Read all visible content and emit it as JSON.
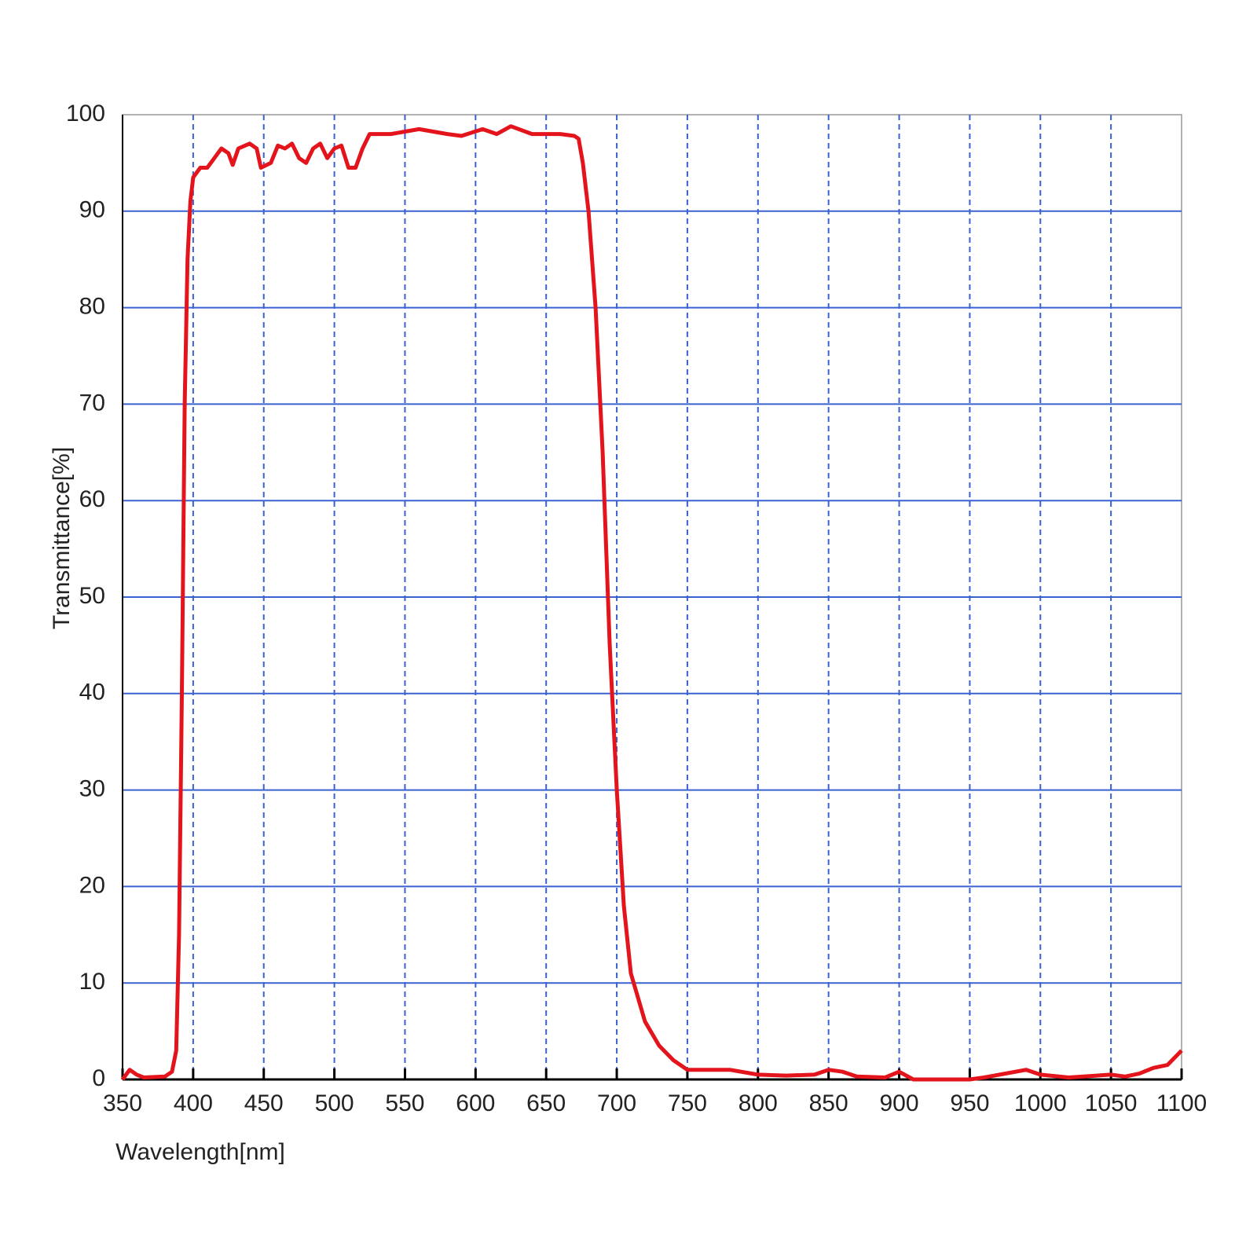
{
  "chart_data": {
    "type": "line",
    "xlabel": "Wavelength[nm]",
    "ylabel": "Transmittance[%]",
    "x": [
      350,
      355,
      360,
      365,
      380,
      385,
      388,
      390,
      392,
      394,
      396,
      398,
      400,
      405,
      410,
      415,
      420,
      425,
      428,
      432,
      440,
      445,
      448,
      455,
      460,
      465,
      470,
      475,
      480,
      485,
      490,
      495,
      500,
      505,
      510,
      515,
      520,
      525,
      540,
      560,
      580,
      590,
      605,
      615,
      625,
      640,
      660,
      670,
      673,
      676,
      680,
      685,
      690,
      695,
      700,
      705,
      710,
      720,
      730,
      740,
      750,
      760,
      780,
      800,
      820,
      840,
      850,
      860,
      870,
      890,
      900,
      910,
      950,
      960,
      990,
      1000,
      1020,
      1050,
      1060,
      1070,
      1080,
      1090,
      1100
    ],
    "values": [
      0,
      1,
      0.5,
      0.2,
      0.3,
      0.8,
      3,
      15,
      40,
      70,
      85,
      91,
      93.5,
      94.5,
      94.5,
      95.5,
      96.5,
      96,
      94.8,
      96.5,
      97,
      96.5,
      94.5,
      95,
      96.8,
      96.5,
      97,
      95.5,
      95,
      96.5,
      97,
      95.5,
      96.5,
      96.8,
      94.5,
      94.5,
      96.5,
      98,
      98,
      98.5,
      98,
      97.8,
      98.5,
      98,
      98.8,
      98,
      98,
      97.8,
      97.5,
      95,
      90,
      80,
      65,
      45,
      30,
      18,
      11,
      6,
      3.5,
      2,
      1,
      1,
      1,
      0.5,
      0.4,
      0.5,
      1,
      0.8,
      0.3,
      0.2,
      0.8,
      0,
      0,
      0.2,
      1,
      0.5,
      0.2,
      0.5,
      0.3,
      0.6,
      1.2,
      1.5,
      3
    ],
    "color": "#e3141b",
    "grid_color": "#3a62d0",
    "xlim": [
      350,
      1100
    ],
    "xticks": [
      350,
      400,
      450,
      500,
      550,
      600,
      650,
      700,
      750,
      800,
      850,
      900,
      950,
      1000,
      1050,
      1100
    ],
    "ylim": [
      0,
      100
    ],
    "yticks": [
      0,
      10,
      20,
      30,
      40,
      50,
      60,
      70,
      80,
      90,
      100
    ],
    "grid": true
  }
}
